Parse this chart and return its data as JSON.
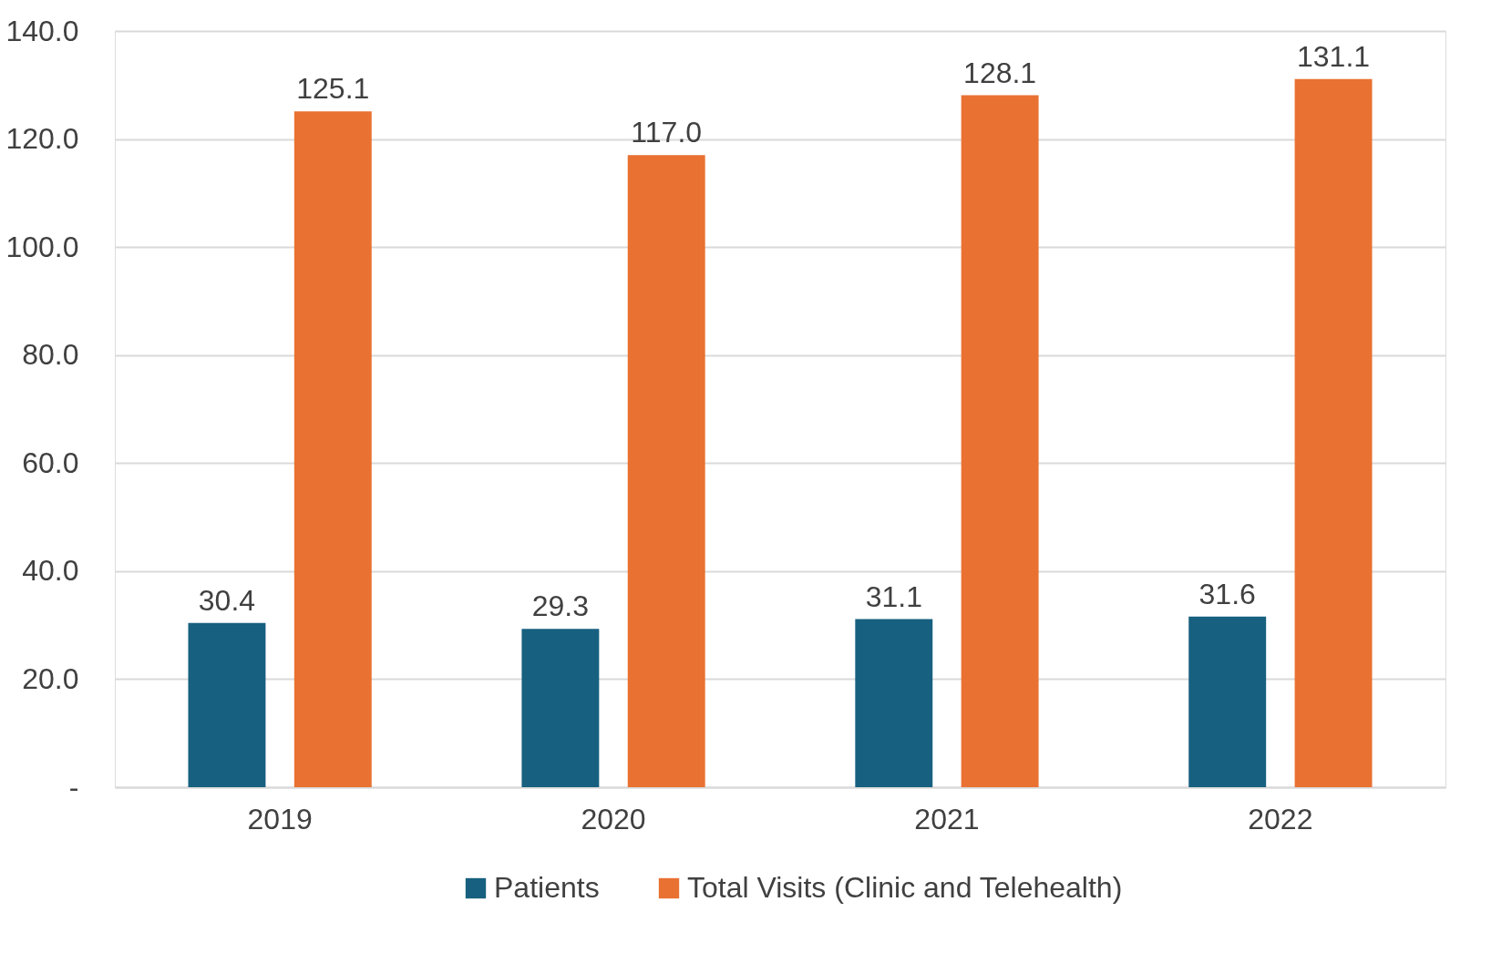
{
  "chart_data": {
    "type": "bar",
    "categories": [
      "2019",
      "2020",
      "2021",
      "2022"
    ],
    "series": [
      {
        "name": "Patients",
        "color": "#17607f",
        "values": [
          30.4,
          29.3,
          31.1,
          31.6
        ],
        "value_labels": [
          "30.4",
          "29.3",
          "31.1",
          "31.6"
        ]
      },
      {
        "name": "Total Visits (Clinic and Telehealth)",
        "color": "#e97132",
        "values": [
          125.1,
          117.0,
          128.1,
          131.1
        ],
        "value_labels": [
          "125.1",
          "117.0",
          "128.1",
          "131.1"
        ]
      }
    ],
    "ylim": [
      0,
      140
    ],
    "yticks": [
      {
        "value": 0,
        "label": "-"
      },
      {
        "value": 20,
        "label": "20.0"
      },
      {
        "value": 40,
        "label": "40.0"
      },
      {
        "value": 60,
        "label": "60.0"
      },
      {
        "value": 80,
        "label": "80.0"
      },
      {
        "value": 100,
        "label": "100.0"
      },
      {
        "value": 120,
        "label": "120.0"
      },
      {
        "value": 140,
        "label": "140.0"
      }
    ],
    "grid": "y",
    "legend": "bottom"
  }
}
